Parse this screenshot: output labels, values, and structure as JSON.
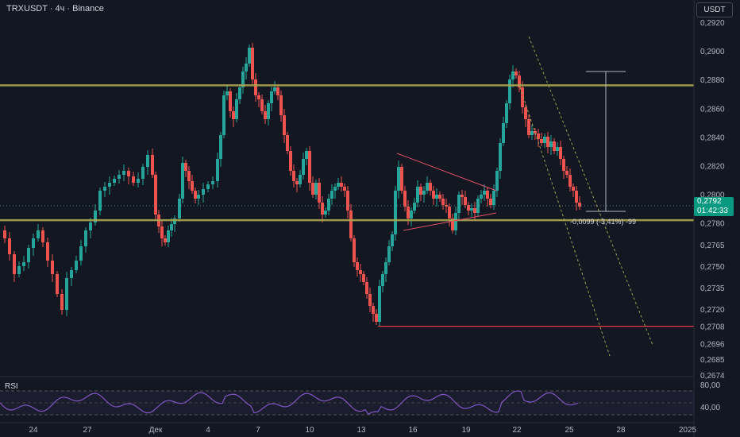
{
  "header": {
    "symbol": "TRXUSDT · 4ч · Binance",
    "currency": "USDT"
  },
  "price_badge": {
    "price": "0,2792",
    "countdown": "01:42:33"
  },
  "measure_label": "-0,0099 (-3,41%) -99",
  "rsi": {
    "label": "RSI"
  },
  "colors": {
    "bg": "#131722",
    "up": "#26a69a",
    "down": "#ef5350",
    "level": "#aca64e",
    "triangle": "#e0506a",
    "support": "#f23645",
    "dashed": "#9aa356",
    "rsi": "#7e57c2"
  },
  "chart_data": {
    "type": "candlestick",
    "x_ticks": [
      "24",
      "27",
      "Дек",
      "4",
      "7",
      "10",
      "13",
      "16",
      "19",
      "22",
      "25",
      "28",
      "2025"
    ],
    "y_ticks": [
      "0,2920",
      "0,2900",
      "0,2880",
      "0,2860",
      "0,2840",
      "0,2820",
      "0,2800",
      "0,2780",
      "0,2765",
      "0,2750",
      "0,2735",
      "0,2720",
      "0,2708",
      "0,2696",
      "0,2685",
      "0,2674"
    ],
    "rsi_ticks": [
      "80,00",
      "40,00"
    ],
    "ylim": [
      0.2674,
      0.2925
    ],
    "levels": [
      0.2876,
      0.2782
    ],
    "support_line": 0.2708,
    "last_price": 0.2792
  }
}
